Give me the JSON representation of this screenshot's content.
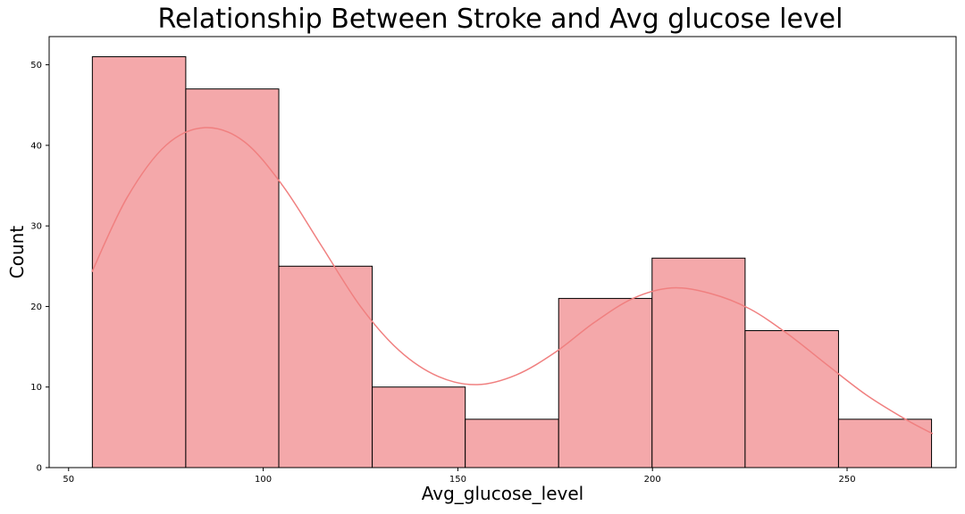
{
  "chart_data": {
    "type": "histogram",
    "title": "Relationship Between Stroke and Avg glucose level",
    "xlabel": "Avg_glucose_level",
    "ylabel": "Count",
    "xlim": [
      45,
      278
    ],
    "ylim": [
      0,
      53.5
    ],
    "x_ticks": [
      50,
      100,
      150,
      200,
      250
    ],
    "y_ticks": [
      0,
      10,
      20,
      30,
      40,
      50
    ],
    "bin_edges": [
      56.1,
      80.1,
      104.0,
      128.0,
      151.9,
      175.9,
      199.9,
      223.8,
      247.8,
      271.7
    ],
    "counts": [
      51,
      47,
      25,
      10,
      6,
      21,
      26,
      17,
      6
    ],
    "bar_color": "#f4a8aa",
    "bar_edge_color": "#000000",
    "kde": {
      "color": "#f08080",
      "x": [
        56,
        65,
        75,
        85,
        95,
        105,
        115,
        125,
        135,
        145,
        155,
        165,
        175,
        185,
        195,
        205,
        215,
        225,
        235,
        245,
        255,
        265,
        272
      ],
      "y": [
        24.3,
        33.5,
        40.0,
        42.2,
        40.5,
        35.0,
        27.5,
        20.0,
        14.5,
        11.3,
        10.3,
        11.5,
        14.3,
        18.0,
        21.0,
        22.3,
        21.6,
        19.7,
        16.5,
        12.7,
        9.0,
        6.0,
        4.2
      ]
    }
  }
}
